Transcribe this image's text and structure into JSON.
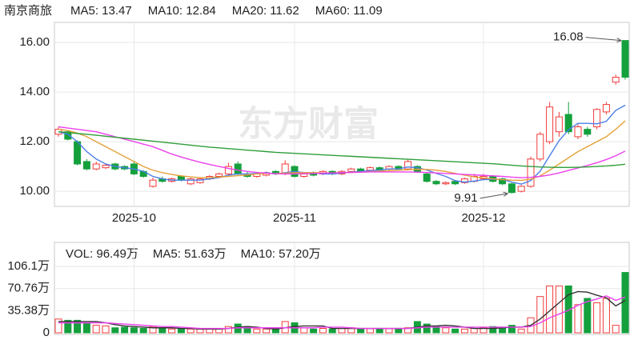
{
  "chart_data": [
    {
      "type": "candlestick",
      "title": "南京商旅",
      "watermark": "东方财富",
      "categories": [
        null,
        null,
        null,
        null,
        null,
        null,
        null,
        null,
        "2025-10",
        null,
        null,
        null,
        null,
        null,
        null,
        null,
        null,
        null,
        null,
        null,
        null,
        null,
        null,
        null,
        null,
        "2025-11",
        null,
        null,
        null,
        null,
        null,
        null,
        null,
        null,
        null,
        null,
        null,
        null,
        null,
        null,
        null,
        null,
        null,
        null,
        null,
        "2025-12",
        null,
        null,
        null,
        null,
        null,
        null,
        null,
        null,
        null,
        null,
        null,
        null,
        null,
        null,
        null
      ],
      "open": [
        12.3,
        12.4,
        12.0,
        11.2,
        10.9,
        10.95,
        11.1,
        11.0,
        11.1,
        10.8,
        10.2,
        10.5,
        10.4,
        10.6,
        10.3,
        10.35,
        10.5,
        10.6,
        10.7,
        11.1,
        10.7,
        10.6,
        10.65,
        10.8,
        10.7,
        11.0,
        10.6,
        10.75,
        10.7,
        10.8,
        10.7,
        10.8,
        10.9,
        10.85,
        10.95,
        10.9,
        11.0,
        10.9,
        11.0,
        10.7,
        10.4,
        10.3,
        10.4,
        10.35,
        10.4,
        10.5,
        10.6,
        10.5,
        10.3,
        10.0,
        10.2,
        11.3,
        12.0,
        12.4,
        13.1,
        12.2,
        12.5,
        12.6,
        13.2,
        14.4,
        16.08
      ],
      "high": [
        12.6,
        12.45,
        12.05,
        11.3,
        11.2,
        11.1,
        11.15,
        11.05,
        11.2,
        10.85,
        10.55,
        10.6,
        10.55,
        10.65,
        10.55,
        10.55,
        10.65,
        10.75,
        11.15,
        11.2,
        10.8,
        10.75,
        10.8,
        10.85,
        11.25,
        11.05,
        10.75,
        10.8,
        10.85,
        10.85,
        10.85,
        10.95,
        10.95,
        11.0,
        11.0,
        11.05,
        11.05,
        11.3,
        11.05,
        10.75,
        10.45,
        10.4,
        10.45,
        10.55,
        10.7,
        10.7,
        10.65,
        10.55,
        10.35,
        10.25,
        11.4,
        12.4,
        13.6,
        13.2,
        13.6,
        12.7,
        12.6,
        13.35,
        13.6,
        14.7,
        16.08
      ],
      "low": [
        12.2,
        12.05,
        11.05,
        10.85,
        10.85,
        10.9,
        10.85,
        10.85,
        10.65,
        10.55,
        10.15,
        10.35,
        10.35,
        10.4,
        10.25,
        10.3,
        10.45,
        10.55,
        10.65,
        10.65,
        10.55,
        10.55,
        10.6,
        10.65,
        10.65,
        10.55,
        10.55,
        10.6,
        10.65,
        10.65,
        10.65,
        10.75,
        10.75,
        10.8,
        10.8,
        10.85,
        10.85,
        10.85,
        10.75,
        10.35,
        10.25,
        10.25,
        10.25,
        10.3,
        10.35,
        10.45,
        10.35,
        10.25,
        9.91,
        9.95,
        10.15,
        11.2,
        11.9,
        12.2,
        12.3,
        12.1,
        12.2,
        12.5,
        13.1,
        14.3,
        14.5
      ],
      "close": [
        12.5,
        12.1,
        11.1,
        10.9,
        11.1,
        11.05,
        10.9,
        10.9,
        10.7,
        10.6,
        10.45,
        10.4,
        10.5,
        10.45,
        10.5,
        10.5,
        10.6,
        10.7,
        11.0,
        10.7,
        10.6,
        10.7,
        10.75,
        10.7,
        11.1,
        10.6,
        10.7,
        10.65,
        10.8,
        10.7,
        10.8,
        10.9,
        10.8,
        10.95,
        10.85,
        11.0,
        10.9,
        11.2,
        10.8,
        10.4,
        10.3,
        10.35,
        10.3,
        10.5,
        10.6,
        10.6,
        10.4,
        10.3,
        9.95,
        10.2,
        11.3,
        12.3,
        13.4,
        13.0,
        12.4,
        12.6,
        12.3,
        13.3,
        13.5,
        14.6,
        14.6
      ],
      "up_color": "#f23b3b",
      "down_color": "#14a03c",
      "ylim": [
        9.39,
        16.81
      ],
      "yticks": [
        {
          "value": 10,
          "label": "10.00"
        },
        {
          "value": 12,
          "label": "12.00"
        },
        {
          "value": 14,
          "label": "14.00"
        },
        {
          "value": 16,
          "label": "16.00"
        }
      ],
      "grid": true,
      "annotations": [
        {
          "label": "16.08",
          "value": 16.08
        },
        {
          "label": "9.91",
          "value": 9.91
        }
      ],
      "series": [
        {
          "name": "MA5: 13.47",
          "color": "#4a7ee8",
          "values": [
            12.4,
            12.3,
            12.0,
            11.6,
            11.3,
            11.1,
            11.0,
            10.95,
            10.9,
            10.8,
            10.6,
            10.5,
            10.45,
            10.45,
            10.45,
            10.45,
            10.5,
            10.55,
            10.65,
            10.7,
            10.7,
            10.72,
            10.75,
            10.7,
            10.75,
            10.8,
            10.75,
            10.75,
            10.7,
            10.7,
            10.73,
            10.77,
            10.8,
            10.83,
            10.86,
            10.9,
            10.9,
            10.98,
            10.95,
            10.86,
            10.72,
            10.6,
            10.43,
            10.37,
            10.41,
            10.47,
            10.48,
            10.48,
            10.37,
            10.29,
            10.43,
            10.81,
            11.43,
            12.04,
            12.48,
            12.74,
            12.74,
            12.72,
            12.82,
            13.26,
            13.47
          ]
        },
        {
          "name": "MA10: 12.84",
          "color": "#e3a23a",
          "values": [
            12.5,
            12.45,
            12.35,
            12.2,
            12.0,
            11.8,
            11.6,
            11.4,
            11.2,
            11.0,
            10.85,
            10.75,
            10.68,
            10.62,
            10.58,
            10.55,
            10.55,
            10.57,
            10.6,
            10.63,
            10.66,
            10.7,
            10.72,
            10.72,
            10.73,
            10.75,
            10.75,
            10.75,
            10.74,
            10.74,
            10.75,
            10.76,
            10.77,
            10.79,
            10.81,
            10.83,
            10.85,
            10.87,
            10.89,
            10.88,
            10.85,
            10.8,
            10.72,
            10.65,
            10.58,
            10.54,
            10.5,
            10.47,
            10.45,
            10.44,
            10.49,
            10.62,
            10.85,
            11.1,
            11.35,
            11.6,
            11.8,
            12.0,
            12.2,
            12.5,
            12.84
          ]
        },
        {
          "name": "MA20: 11.62",
          "color": "#ec40ec",
          "values": [
            12.6,
            12.55,
            12.5,
            12.45,
            12.4,
            12.3,
            12.2,
            12.1,
            12.0,
            11.9,
            11.8,
            11.65,
            11.5,
            11.38,
            11.27,
            11.17,
            11.08,
            11.0,
            10.92,
            10.85,
            10.8,
            10.76,
            10.73,
            10.71,
            10.7,
            10.7,
            10.71,
            10.72,
            10.73,
            10.74,
            10.75,
            10.76,
            10.77,
            10.78,
            10.78,
            10.78,
            10.78,
            10.78,
            10.77,
            10.76,
            10.74,
            10.72,
            10.7,
            10.68,
            10.66,
            10.64,
            10.62,
            10.6,
            10.57,
            10.55,
            10.56,
            10.6,
            10.66,
            10.74,
            10.84,
            10.94,
            11.04,
            11.15,
            11.28,
            11.43,
            11.62
          ]
        },
        {
          "name": "MA60: 11.09",
          "color": "#2f9e3a",
          "values": [
            12.4,
            12.37,
            12.33,
            12.3,
            12.26,
            12.22,
            12.18,
            12.14,
            12.1,
            12.06,
            12.02,
            11.98,
            11.94,
            11.9,
            11.86,
            11.82,
            11.78,
            11.75,
            11.72,
            11.69,
            11.66,
            11.63,
            11.6,
            11.57,
            11.55,
            11.53,
            11.51,
            11.49,
            11.47,
            11.45,
            11.43,
            11.41,
            11.39,
            11.37,
            11.35,
            11.33,
            11.31,
            11.29,
            11.27,
            11.25,
            11.23,
            11.21,
            11.19,
            11.17,
            11.15,
            11.13,
            11.11,
            11.08,
            11.05,
            11.02,
            11.0,
            10.98,
            10.97,
            10.96,
            10.96,
            10.97,
            10.98,
            11.0,
            11.02,
            11.05,
            11.09
          ]
        }
      ]
    },
    {
      "type": "bar",
      "name": "VOL: 96.49万",
      "values": [
        22,
        20,
        20,
        16,
        12,
        11,
        8,
        9,
        8,
        7,
        10,
        7,
        6,
        6,
        6,
        6,
        7,
        7,
        10,
        14,
        10,
        6,
        6,
        6,
        18,
        16,
        8,
        6,
        7,
        6,
        7,
        8,
        6,
        7,
        6,
        7,
        6,
        8,
        18,
        14,
        10,
        8,
        6,
        6,
        7,
        8,
        10,
        9,
        12,
        6,
        24,
        58,
        75,
        75,
        75,
        45,
        55,
        48,
        55,
        12,
        96.49
      ],
      "ylim": [
        0,
        142
      ],
      "yticks": [
        {
          "value": 0,
          "label": "0"
        },
        {
          "value": 35.38,
          "label": "35.38万"
        },
        {
          "value": 70.76,
          "label": "70.76万"
        },
        {
          "value": 106.1,
          "label": "106.1万"
        }
      ],
      "grid": true,
      "series": [
        {
          "name": "MA5: 51.63万",
          "color": "#333333",
          "values": [
            18,
            18,
            18,
            18,
            18,
            16,
            13,
            11,
            10,
            9,
            8,
            8,
            8,
            7,
            7,
            6,
            6,
            6,
            7,
            9,
            10,
            9,
            7,
            6,
            8,
            10,
            11,
            11,
            11,
            7,
            7,
            7,
            7,
            7,
            7,
            7,
            7,
            7,
            9,
            11,
            11,
            12,
            11,
            9,
            7,
            7,
            7,
            8,
            9,
            9,
            12,
            22,
            35,
            48,
            61,
            66,
            65,
            60,
            56,
            43,
            51.63
          ]
        },
        {
          "name": "MA10: 57.20万",
          "color": "#ec40ec",
          "values": [
            16,
            16,
            16,
            16,
            16,
            16,
            15,
            14,
            13,
            12,
            11,
            10,
            10,
            9,
            8,
            7,
            7,
            7,
            7,
            8,
            8,
            8,
            8,
            8,
            8,
            8,
            8,
            8,
            9,
            9,
            9,
            8,
            7,
            7,
            7,
            7,
            7,
            7,
            8,
            9,
            9,
            9,
            9,
            9,
            9,
            9,
            9,
            9,
            9,
            9,
            10,
            16,
            24,
            30,
            36,
            44,
            50,
            54,
            59,
            52,
            57.2
          ]
        }
      ]
    }
  ]
}
